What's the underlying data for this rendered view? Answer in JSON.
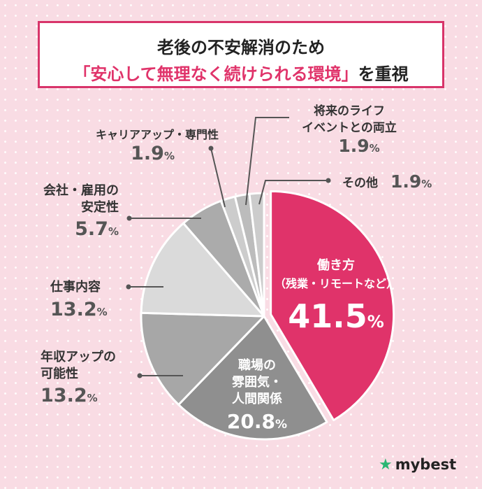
{
  "title": {
    "line1": "老後の不安解消のため",
    "line2_accent": "「安心して無理なく続けられる環境」",
    "line2_rest": "を重視"
  },
  "colors": {
    "background": "#f9dce4",
    "accent": "#e0336a",
    "title_border": "#d8346a",
    "slices": [
      "#e0336a",
      "#8f8f8f",
      "#a7a7a7",
      "#dadada",
      "#ababab",
      "#cccccc",
      "#bcbcbc",
      "#cccccc"
    ]
  },
  "chart_data": {
    "type": "pie",
    "categories": [
      "働き方（残業・リモートなど）",
      "職場の雰囲気・人間関係",
      "年収アップの可能性",
      "仕事内容",
      "会社・雇用の安定性",
      "キャリアアップ・専門性",
      "将来のライフイベントとの両立",
      "その他"
    ],
    "values": [
      41.5,
      20.8,
      13.2,
      13.2,
      5.7,
      1.9,
      1.9,
      1.9
    ],
    "unit": "%",
    "highlight": "働き方（残業・リモートなど）"
  },
  "labels": {
    "work_style": {
      "line1": "働き方",
      "line2": "（残業・リモートなど）",
      "value": "41.5",
      "unit": "%"
    },
    "atmosphere": {
      "line1": "職場の",
      "line2": "雰囲気・",
      "line3": "人間関係",
      "value": "20.8",
      "unit": "%"
    },
    "salary": {
      "line1": "年収アップの",
      "line2": "可能性",
      "value": "13.2",
      "unit": "%"
    },
    "job_content": {
      "line1": "仕事内容",
      "value": "13.2",
      "unit": "%"
    },
    "stability": {
      "line1": "会社・雇用の",
      "line2": "安定性",
      "value": "5.7",
      "unit": "%"
    },
    "career": {
      "line1": "キャリアアップ・専門性",
      "value": "1.9",
      "unit": "%"
    },
    "life_events": {
      "line1": "将来のライフ",
      "line2": "イベントとの両立",
      "value": "1.9",
      "unit": "%"
    },
    "other": {
      "line1": "その他",
      "value": "1.9",
      "unit": "%"
    }
  },
  "brand": {
    "name": "mybest"
  }
}
